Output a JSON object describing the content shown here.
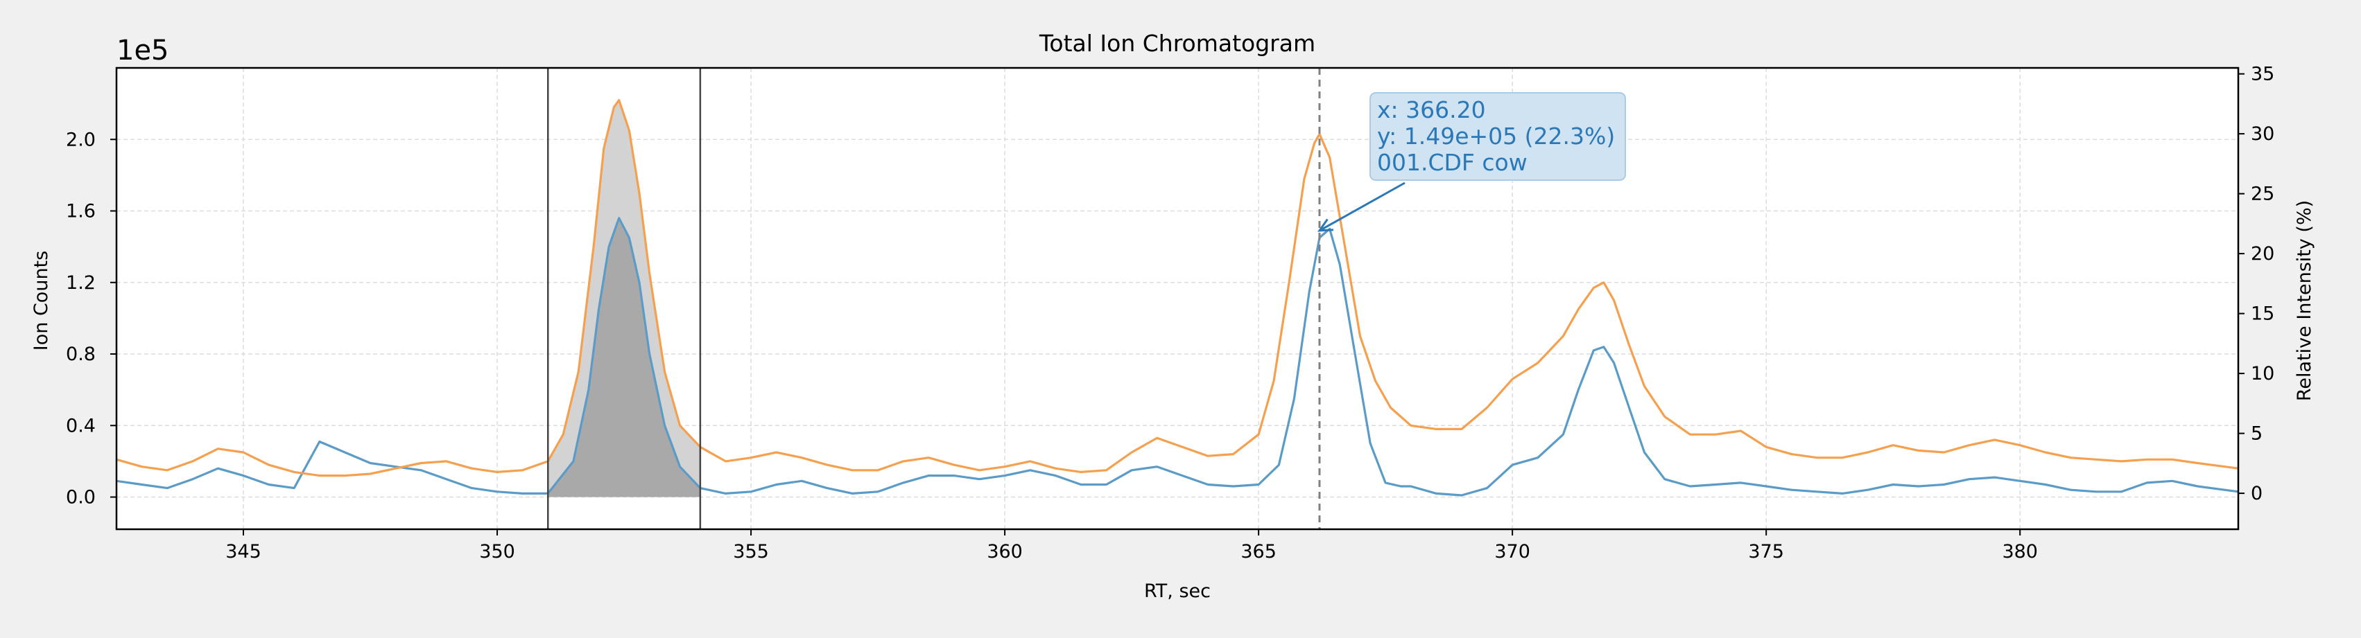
{
  "chart_data": {
    "type": "line",
    "title": "Total Ion Chromatogram",
    "xlabel": "RT, sec",
    "ylabel": "Ion Counts",
    "y2label": "Relative Intensity (%)",
    "offset_label": "1e5",
    "xlim": [
      342.5,
      384.3
    ],
    "ylim": [
      -0.18,
      2.4
    ],
    "y2lim": [
      -3.0,
      35.5
    ],
    "grid": true,
    "x_ticks": [
      345,
      350,
      355,
      360,
      365,
      370,
      375,
      380
    ],
    "y_ticks": [
      "0.0",
      "0.4",
      "0.8",
      "1.2",
      "1.6",
      "2.0"
    ],
    "y2_ticks": [
      0,
      5,
      10,
      15,
      20,
      25,
      30,
      35
    ],
    "colors": {
      "blue": "#5b9bc8",
      "orange": "#f5a04e",
      "fill": "#a9a9a9",
      "fill_light": "#d3d3d3",
      "annotation": "#2a78b8",
      "annotation_bg": "#cfe3f2"
    },
    "integration_window": {
      "start": 351.0,
      "end": 354.0
    },
    "cursor_x": 366.2,
    "annotation": {
      "lines": [
        "x: 366.20",
        "y: 1.49e+05 (22.3%)",
        "001.CDF cow"
      ],
      "x": 366.2,
      "y": 1.49
    },
    "series": [
      {
        "color": "blue",
        "points": [
          [
            342.5,
            0.09
          ],
          [
            343.0,
            0.07
          ],
          [
            343.5,
            0.05
          ],
          [
            344.0,
            0.1
          ],
          [
            344.5,
            0.16
          ],
          [
            345.0,
            0.12
          ],
          [
            345.5,
            0.07
          ],
          [
            346.0,
            0.05
          ],
          [
            346.5,
            0.31
          ],
          [
            347.0,
            0.25
          ],
          [
            347.5,
            0.19
          ],
          [
            348.0,
            0.17
          ],
          [
            348.5,
            0.15
          ],
          [
            349.0,
            0.1
          ],
          [
            349.5,
            0.05
          ],
          [
            350.0,
            0.03
          ],
          [
            350.5,
            0.02
          ],
          [
            351.0,
            0.02
          ],
          [
            351.5,
            0.2
          ],
          [
            351.8,
            0.6
          ],
          [
            352.0,
            1.05
          ],
          [
            352.2,
            1.4
          ],
          [
            352.4,
            1.56
          ],
          [
            352.6,
            1.45
          ],
          [
            352.8,
            1.2
          ],
          [
            353.0,
            0.8
          ],
          [
            353.3,
            0.4
          ],
          [
            353.6,
            0.17
          ],
          [
            354.0,
            0.05
          ],
          [
            354.5,
            0.02
          ],
          [
            355.0,
            0.03
          ],
          [
            355.5,
            0.07
          ],
          [
            356.0,
            0.09
          ],
          [
            356.5,
            0.05
          ],
          [
            357.0,
            0.02
          ],
          [
            357.5,
            0.03
          ],
          [
            358.0,
            0.08
          ],
          [
            358.5,
            0.12
          ],
          [
            359.0,
            0.12
          ],
          [
            359.5,
            0.1
          ],
          [
            360.0,
            0.12
          ],
          [
            360.5,
            0.15
          ],
          [
            361.0,
            0.12
          ],
          [
            361.5,
            0.07
          ],
          [
            362.0,
            0.07
          ],
          [
            362.5,
            0.15
          ],
          [
            363.0,
            0.17
          ],
          [
            363.5,
            0.12
          ],
          [
            364.0,
            0.07
          ],
          [
            364.5,
            0.06
          ],
          [
            365.0,
            0.07
          ],
          [
            365.4,
            0.18
          ],
          [
            365.7,
            0.55
          ],
          [
            366.0,
            1.15
          ],
          [
            366.2,
            1.45
          ],
          [
            366.4,
            1.5
          ],
          [
            366.6,
            1.3
          ],
          [
            366.9,
            0.8
          ],
          [
            367.2,
            0.3
          ],
          [
            367.5,
            0.08
          ],
          [
            367.8,
            0.06
          ],
          [
            368.0,
            0.06
          ],
          [
            368.5,
            0.02
          ],
          [
            369.0,
            0.01
          ],
          [
            369.5,
            0.05
          ],
          [
            370.0,
            0.18
          ],
          [
            370.5,
            0.22
          ],
          [
            371.0,
            0.35
          ],
          [
            371.3,
            0.6
          ],
          [
            371.6,
            0.82
          ],
          [
            371.8,
            0.84
          ],
          [
            372.0,
            0.75
          ],
          [
            372.3,
            0.5
          ],
          [
            372.6,
            0.25
          ],
          [
            373.0,
            0.1
          ],
          [
            373.5,
            0.06
          ],
          [
            374.0,
            0.07
          ],
          [
            374.5,
            0.08
          ],
          [
            375.0,
            0.06
          ],
          [
            375.5,
            0.04
          ],
          [
            376.0,
            0.03
          ],
          [
            376.5,
            0.02
          ],
          [
            377.0,
            0.04
          ],
          [
            377.5,
            0.07
          ],
          [
            378.0,
            0.06
          ],
          [
            378.5,
            0.07
          ],
          [
            379.0,
            0.1
          ],
          [
            379.5,
            0.11
          ],
          [
            380.0,
            0.09
          ],
          [
            380.5,
            0.07
          ],
          [
            381.0,
            0.04
          ],
          [
            381.5,
            0.03
          ],
          [
            382.0,
            0.03
          ],
          [
            382.5,
            0.08
          ],
          [
            383.0,
            0.09
          ],
          [
            383.5,
            0.06
          ],
          [
            384.3,
            0.03
          ]
        ]
      },
      {
        "color": "orange",
        "points": [
          [
            342.5,
            0.21
          ],
          [
            343.0,
            0.17
          ],
          [
            343.5,
            0.15
          ],
          [
            344.0,
            0.2
          ],
          [
            344.5,
            0.27
          ],
          [
            345.0,
            0.25
          ],
          [
            345.5,
            0.18
          ],
          [
            346.0,
            0.14
          ],
          [
            346.5,
            0.12
          ],
          [
            347.0,
            0.12
          ],
          [
            347.5,
            0.13
          ],
          [
            348.0,
            0.16
          ],
          [
            348.5,
            0.19
          ],
          [
            349.0,
            0.2
          ],
          [
            349.5,
            0.16
          ],
          [
            350.0,
            0.14
          ],
          [
            350.5,
            0.15
          ],
          [
            351.0,
            0.2
          ],
          [
            351.3,
            0.35
          ],
          [
            351.6,
            0.7
          ],
          [
            351.9,
            1.4
          ],
          [
            352.1,
            1.95
          ],
          [
            352.3,
            2.18
          ],
          [
            352.4,
            2.22
          ],
          [
            352.6,
            2.05
          ],
          [
            352.8,
            1.7
          ],
          [
            353.0,
            1.25
          ],
          [
            353.3,
            0.7
          ],
          [
            353.6,
            0.4
          ],
          [
            354.0,
            0.28
          ],
          [
            354.5,
            0.2
          ],
          [
            355.0,
            0.22
          ],
          [
            355.5,
            0.25
          ],
          [
            356.0,
            0.22
          ],
          [
            356.5,
            0.18
          ],
          [
            357.0,
            0.15
          ],
          [
            357.5,
            0.15
          ],
          [
            358.0,
            0.2
          ],
          [
            358.5,
            0.22
          ],
          [
            359.0,
            0.18
          ],
          [
            359.5,
            0.15
          ],
          [
            360.0,
            0.17
          ],
          [
            360.5,
            0.2
          ],
          [
            361.0,
            0.16
          ],
          [
            361.5,
            0.14
          ],
          [
            362.0,
            0.15
          ],
          [
            362.5,
            0.25
          ],
          [
            363.0,
            0.33
          ],
          [
            363.5,
            0.28
          ],
          [
            364.0,
            0.23
          ],
          [
            364.5,
            0.24
          ],
          [
            365.0,
            0.35
          ],
          [
            365.3,
            0.65
          ],
          [
            365.6,
            1.2
          ],
          [
            365.9,
            1.78
          ],
          [
            366.1,
            1.98
          ],
          [
            366.2,
            2.03
          ],
          [
            366.4,
            1.9
          ],
          [
            366.7,
            1.4
          ],
          [
            367.0,
            0.9
          ],
          [
            367.3,
            0.65
          ],
          [
            367.6,
            0.5
          ],
          [
            368.0,
            0.4
          ],
          [
            368.5,
            0.38
          ],
          [
            369.0,
            0.38
          ],
          [
            369.5,
            0.5
          ],
          [
            370.0,
            0.66
          ],
          [
            370.5,
            0.75
          ],
          [
            371.0,
            0.9
          ],
          [
            371.3,
            1.05
          ],
          [
            371.6,
            1.17
          ],
          [
            371.8,
            1.2
          ],
          [
            372.0,
            1.1
          ],
          [
            372.3,
            0.85
          ],
          [
            372.6,
            0.62
          ],
          [
            373.0,
            0.45
          ],
          [
            373.5,
            0.35
          ],
          [
            374.0,
            0.35
          ],
          [
            374.5,
            0.37
          ],
          [
            375.0,
            0.28
          ],
          [
            375.5,
            0.24
          ],
          [
            376.0,
            0.22
          ],
          [
            376.5,
            0.22
          ],
          [
            377.0,
            0.25
          ],
          [
            377.5,
            0.29
          ],
          [
            378.0,
            0.26
          ],
          [
            378.5,
            0.25
          ],
          [
            379.0,
            0.29
          ],
          [
            379.5,
            0.32
          ],
          [
            380.0,
            0.29
          ],
          [
            380.5,
            0.25
          ],
          [
            381.0,
            0.22
          ],
          [
            381.5,
            0.21
          ],
          [
            382.0,
            0.2
          ],
          [
            382.5,
            0.21
          ],
          [
            383.0,
            0.21
          ],
          [
            383.5,
            0.19
          ],
          [
            384.3,
            0.16
          ]
        ]
      }
    ]
  }
}
